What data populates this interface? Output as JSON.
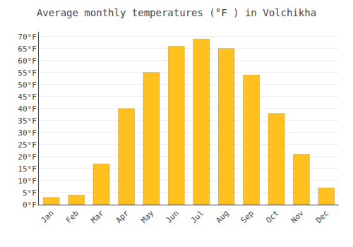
{
  "chart_data": {
    "type": "bar",
    "title": "Average monthly temperatures (°F ) in Volchikha",
    "categories": [
      "Jan",
      "Feb",
      "Mar",
      "Apr",
      "May",
      "Jun",
      "Jul",
      "Aug",
      "Sep",
      "Oct",
      "Nov",
      "Dec"
    ],
    "values": [
      3,
      4,
      17,
      40,
      55,
      66,
      69,
      65,
      54,
      38,
      21,
      7
    ],
    "color": "#FFC020",
    "ylim": [
      0,
      72
    ],
    "yticks": [
      {
        "value": 0,
        "label": "0°F"
      },
      {
        "value": 5,
        "label": "5°F"
      },
      {
        "value": 10,
        "label": "10°F"
      },
      {
        "value": 15,
        "label": "15°F"
      },
      {
        "value": 20,
        "label": "20°F"
      },
      {
        "value": 25,
        "label": "25°F"
      },
      {
        "value": 30,
        "label": "30°F"
      },
      {
        "value": 35,
        "label": "35°F"
      },
      {
        "value": 40,
        "label": "40°F"
      },
      {
        "value": 45,
        "label": "45°F"
      },
      {
        "value": 50,
        "label": "50°F"
      },
      {
        "value": 55,
        "label": "55°F"
      },
      {
        "value": 60,
        "label": "60°F"
      },
      {
        "value": 65,
        "label": "65°F"
      },
      {
        "value": 70,
        "label": "70°F"
      }
    ],
    "grid": true
  }
}
